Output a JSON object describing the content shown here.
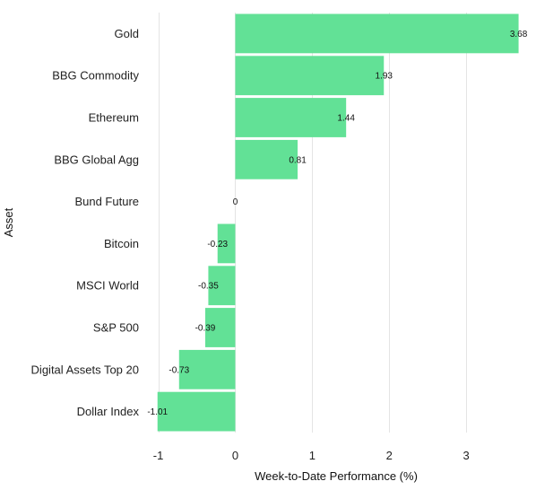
{
  "chart_data": {
    "type": "bar",
    "orientation": "horizontal",
    "categories": [
      "Gold",
      "BBG Commodity",
      "Ethereum",
      "BBG Global Agg",
      "Bund Future",
      "Bitcoin",
      "MSCI World",
      "S&P 500",
      "Digital Assets Top 20",
      "Dollar Index"
    ],
    "values": [
      3.68,
      1.93,
      1.44,
      0.81,
      0,
      -0.23,
      -0.35,
      -0.39,
      -0.73,
      -1.01
    ],
    "data_labels": [
      "3.68",
      "1.93",
      "1.44",
      "0.81",
      "0",
      "-0.23",
      "-0.35",
      "-0.39",
      "-0.73",
      "-1.01"
    ],
    "title": "",
    "xlabel": "Week-to-Date Performance (%)",
    "ylabel": "Asset",
    "xlim": [
      -1.1,
      3.72
    ],
    "xticks": [
      -1,
      0,
      1,
      2,
      3
    ],
    "xtick_labels": [
      "-1",
      "0",
      "1",
      "2",
      "3"
    ],
    "grid": "vertical",
    "legend": "none",
    "bar_color": "#62e196",
    "grid_color": "#e4e4e4"
  }
}
